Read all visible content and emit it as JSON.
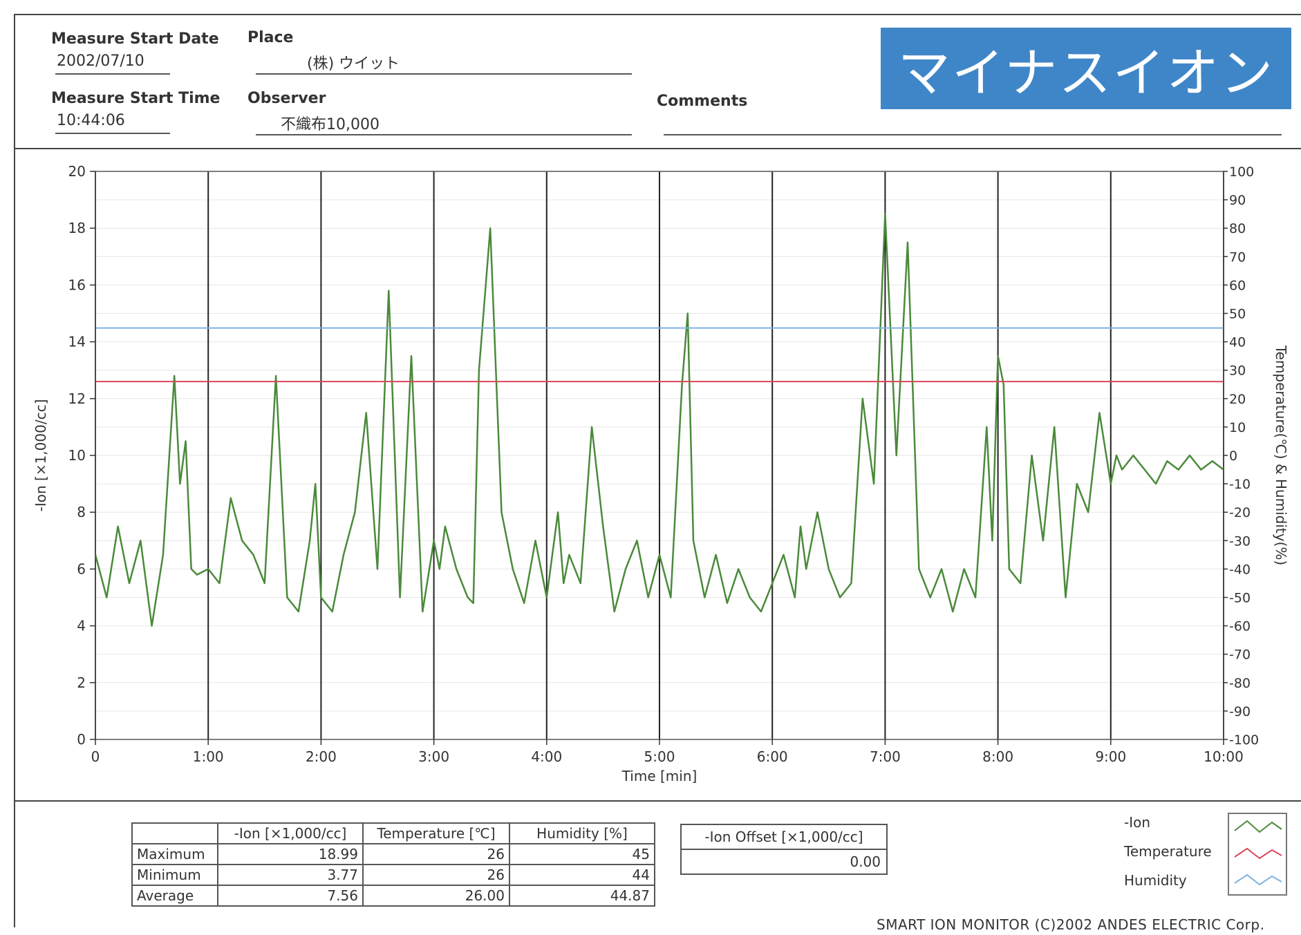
{
  "header": {
    "measure_start_date_label": "Measure Start Date",
    "measure_start_date": "2002/07/10",
    "place_label": "Place",
    "place": "(株) ウイット",
    "measure_start_time_label": "Measure Start Time",
    "measure_start_time": "10:44:06",
    "observer_label": "Observer",
    "observer": "不織布10,000",
    "comments_label": "Comments",
    "comments": "",
    "title": "マイナスイオン"
  },
  "chart_data": {
    "type": "line",
    "xlabel": "Time [min]",
    "ylabel": "-Ion [×1,000/cc]",
    "y2label": "Temperature(℃) & Humidity(%)",
    "xlim": [
      0,
      1000
    ],
    "ylim": [
      0,
      20
    ],
    "y2lim": [
      -100,
      100
    ],
    "x_ticks": [
      "0",
      "1:00",
      "2:00",
      "3:00",
      "4:00",
      "5:00",
      "6:00",
      "7:00",
      "8:00",
      "9:00",
      "10:00"
    ],
    "y_ticks": [
      "0",
      "2",
      "4",
      "6",
      "8",
      "10",
      "12",
      "14",
      "16",
      "18",
      "20"
    ],
    "y2_ticks": [
      "-100",
      "-90",
      "-80",
      "-70",
      "-60",
      "-50",
      "-40",
      "-30",
      "-20",
      "-10",
      "0",
      "10",
      "20",
      "30",
      "40",
      "50",
      "60",
      "70",
      "80",
      "90",
      "100"
    ],
    "vertical_markers": [
      0,
      100,
      200,
      300,
      400,
      500,
      600,
      700,
      800,
      900,
      1000
    ],
    "grid": true,
    "series": [
      {
        "name": "-Ion",
        "axis": "left",
        "color": "#4a8a3a",
        "x": [
          0,
          10,
          20,
          30,
          40,
          50,
          60,
          70,
          75,
          80,
          85,
          90,
          100,
          110,
          120,
          130,
          140,
          150,
          160,
          170,
          180,
          190,
          195,
          200,
          210,
          220,
          230,
          240,
          250,
          260,
          270,
          280,
          290,
          300,
          305,
          310,
          320,
          330,
          335,
          340,
          350,
          360,
          370,
          380,
          390,
          400,
          410,
          415,
          420,
          430,
          440,
          450,
          460,
          470,
          480,
          490,
          500,
          510,
          520,
          525,
          530,
          540,
          550,
          560,
          570,
          580,
          590,
          600,
          610,
          620,
          625,
          630,
          640,
          650,
          660,
          670,
          680,
          690,
          700,
          710,
          720,
          730,
          740,
          750,
          760,
          770,
          780,
          790,
          795,
          800,
          805,
          810,
          820,
          830,
          840,
          850,
          860,
          870,
          880,
          890,
          900,
          905,
          910,
          920,
          930,
          940,
          950,
          960,
          970,
          980,
          990,
          1000
        ],
        "values": [
          6.5,
          5.0,
          7.5,
          5.5,
          7.0,
          4.0,
          6.5,
          12.8,
          9.0,
          10.5,
          6.0,
          5.8,
          6.0,
          5.5,
          8.5,
          7.0,
          6.5,
          5.5,
          12.8,
          5.0,
          4.5,
          7.0,
          9.0,
          5.0,
          4.5,
          6.5,
          8.0,
          11.5,
          6.0,
          15.8,
          5.0,
          13.5,
          4.5,
          7.0,
          6.0,
          7.5,
          6.0,
          5.0,
          4.8,
          13.0,
          18.0,
          8.0,
          6.0,
          4.8,
          7.0,
          5.0,
          8.0,
          5.5,
          6.5,
          5.5,
          11.0,
          7.5,
          4.5,
          6.0,
          7.0,
          5.0,
          6.5,
          5.0,
          12.5,
          15.0,
          7.0,
          5.0,
          6.5,
          4.8,
          6.0,
          5.0,
          4.5,
          5.5,
          6.5,
          5.0,
          7.5,
          6.0,
          8.0,
          6.0,
          5.0,
          5.5,
          12.0,
          9.0,
          18.5,
          10.0,
          17.5,
          6.0,
          5.0,
          6.0,
          4.5,
          6.0,
          5.0,
          11.0,
          7.0,
          13.5,
          12.5,
          6.0,
          5.5,
          10.0,
          7.0,
          11.0,
          5.0,
          9.0,
          8.0,
          11.5,
          9.0,
          10.0,
          9.5,
          10.0,
          9.5,
          9.0,
          9.8,
          9.5,
          10.0,
          9.5,
          9.8,
          9.5
        ]
      },
      {
        "name": "Temperature",
        "axis": "right",
        "color": "#d9475a",
        "x": [
          0,
          1000
        ],
        "values": [
          26,
          26
        ]
      },
      {
        "name": "Humidity",
        "axis": "right",
        "color": "#7fb2e0",
        "x": [
          0,
          1000
        ],
        "values": [
          44.87,
          44.87
        ]
      }
    ],
    "legend": [
      "-Ion",
      "Temperature",
      "Humidity"
    ],
    "legend_position": "bottom-right"
  },
  "stats_table": {
    "columns": [
      "",
      "-Ion [×1,000/cc]",
      "Temperature [℃]",
      "Humidity [%]"
    ],
    "rows": [
      [
        "Maximum",
        "18.99",
        "26",
        "45"
      ],
      [
        "Minimum",
        "3.77",
        "26",
        "44"
      ],
      [
        "Average",
        "7.56",
        "26.00",
        "44.87"
      ]
    ]
  },
  "offset_table": {
    "header": "-Ion Offset [×1,000/cc]",
    "value": "0.00"
  },
  "legend": {
    "ion": "-Ion",
    "temperature": "Temperature",
    "humidity": "Humidity"
  },
  "footer": "SMART ION MONITOR (C)2002 ANDES ELECTRIC Corp."
}
